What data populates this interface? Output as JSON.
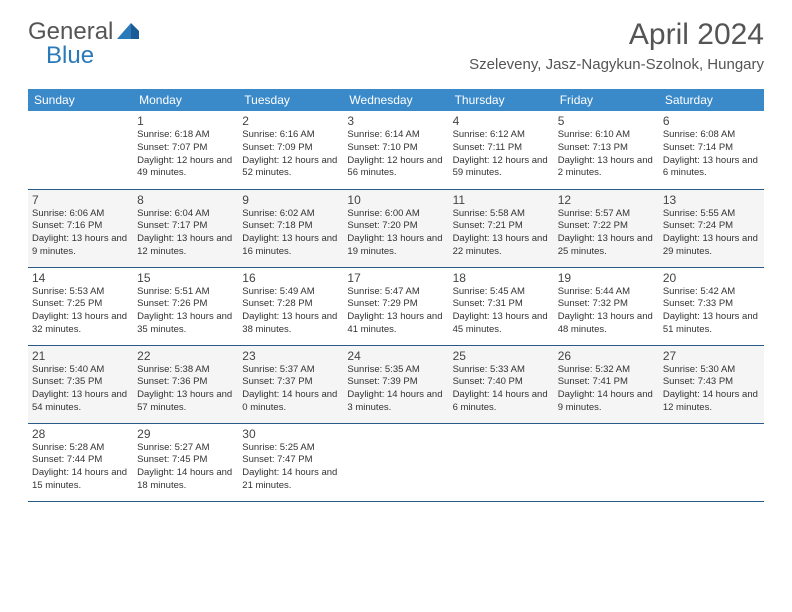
{
  "logo": {
    "text1": "General",
    "text2": "Blue"
  },
  "title": "April 2024",
  "location": "Szeleveny, Jasz-Nagykun-Szolnok, Hungary",
  "colors": {
    "header_bg": "#3a89c9",
    "header_text": "#ffffff",
    "row_border": "#2a5a8a",
    "logo_gray": "#555555",
    "logo_blue": "#2a7ab9"
  },
  "days_of_week": [
    "Sunday",
    "Monday",
    "Tuesday",
    "Wednesday",
    "Thursday",
    "Friday",
    "Saturday"
  ],
  "weeks": [
    [
      null,
      {
        "n": "1",
        "sr": "Sunrise: 6:18 AM",
        "ss": "Sunset: 7:07 PM",
        "dl": "Daylight: 12 hours and 49 minutes."
      },
      {
        "n": "2",
        "sr": "Sunrise: 6:16 AM",
        "ss": "Sunset: 7:09 PM",
        "dl": "Daylight: 12 hours and 52 minutes."
      },
      {
        "n": "3",
        "sr": "Sunrise: 6:14 AM",
        "ss": "Sunset: 7:10 PM",
        "dl": "Daylight: 12 hours and 56 minutes."
      },
      {
        "n": "4",
        "sr": "Sunrise: 6:12 AM",
        "ss": "Sunset: 7:11 PM",
        "dl": "Daylight: 12 hours and 59 minutes."
      },
      {
        "n": "5",
        "sr": "Sunrise: 6:10 AM",
        "ss": "Sunset: 7:13 PM",
        "dl": "Daylight: 13 hours and 2 minutes."
      },
      {
        "n": "6",
        "sr": "Sunrise: 6:08 AM",
        "ss": "Sunset: 7:14 PM",
        "dl": "Daylight: 13 hours and 6 minutes."
      }
    ],
    [
      {
        "n": "7",
        "sr": "Sunrise: 6:06 AM",
        "ss": "Sunset: 7:16 PM",
        "dl": "Daylight: 13 hours and 9 minutes."
      },
      {
        "n": "8",
        "sr": "Sunrise: 6:04 AM",
        "ss": "Sunset: 7:17 PM",
        "dl": "Daylight: 13 hours and 12 minutes."
      },
      {
        "n": "9",
        "sr": "Sunrise: 6:02 AM",
        "ss": "Sunset: 7:18 PM",
        "dl": "Daylight: 13 hours and 16 minutes."
      },
      {
        "n": "10",
        "sr": "Sunrise: 6:00 AM",
        "ss": "Sunset: 7:20 PM",
        "dl": "Daylight: 13 hours and 19 minutes."
      },
      {
        "n": "11",
        "sr": "Sunrise: 5:58 AM",
        "ss": "Sunset: 7:21 PM",
        "dl": "Daylight: 13 hours and 22 minutes."
      },
      {
        "n": "12",
        "sr": "Sunrise: 5:57 AM",
        "ss": "Sunset: 7:22 PM",
        "dl": "Daylight: 13 hours and 25 minutes."
      },
      {
        "n": "13",
        "sr": "Sunrise: 5:55 AM",
        "ss": "Sunset: 7:24 PM",
        "dl": "Daylight: 13 hours and 29 minutes."
      }
    ],
    [
      {
        "n": "14",
        "sr": "Sunrise: 5:53 AM",
        "ss": "Sunset: 7:25 PM",
        "dl": "Daylight: 13 hours and 32 minutes."
      },
      {
        "n": "15",
        "sr": "Sunrise: 5:51 AM",
        "ss": "Sunset: 7:26 PM",
        "dl": "Daylight: 13 hours and 35 minutes."
      },
      {
        "n": "16",
        "sr": "Sunrise: 5:49 AM",
        "ss": "Sunset: 7:28 PM",
        "dl": "Daylight: 13 hours and 38 minutes."
      },
      {
        "n": "17",
        "sr": "Sunrise: 5:47 AM",
        "ss": "Sunset: 7:29 PM",
        "dl": "Daylight: 13 hours and 41 minutes."
      },
      {
        "n": "18",
        "sr": "Sunrise: 5:45 AM",
        "ss": "Sunset: 7:31 PM",
        "dl": "Daylight: 13 hours and 45 minutes."
      },
      {
        "n": "19",
        "sr": "Sunrise: 5:44 AM",
        "ss": "Sunset: 7:32 PM",
        "dl": "Daylight: 13 hours and 48 minutes."
      },
      {
        "n": "20",
        "sr": "Sunrise: 5:42 AM",
        "ss": "Sunset: 7:33 PM",
        "dl": "Daylight: 13 hours and 51 minutes."
      }
    ],
    [
      {
        "n": "21",
        "sr": "Sunrise: 5:40 AM",
        "ss": "Sunset: 7:35 PM",
        "dl": "Daylight: 13 hours and 54 minutes."
      },
      {
        "n": "22",
        "sr": "Sunrise: 5:38 AM",
        "ss": "Sunset: 7:36 PM",
        "dl": "Daylight: 13 hours and 57 minutes."
      },
      {
        "n": "23",
        "sr": "Sunrise: 5:37 AM",
        "ss": "Sunset: 7:37 PM",
        "dl": "Daylight: 14 hours and 0 minutes."
      },
      {
        "n": "24",
        "sr": "Sunrise: 5:35 AM",
        "ss": "Sunset: 7:39 PM",
        "dl": "Daylight: 14 hours and 3 minutes."
      },
      {
        "n": "25",
        "sr": "Sunrise: 5:33 AM",
        "ss": "Sunset: 7:40 PM",
        "dl": "Daylight: 14 hours and 6 minutes."
      },
      {
        "n": "26",
        "sr": "Sunrise: 5:32 AM",
        "ss": "Sunset: 7:41 PM",
        "dl": "Daylight: 14 hours and 9 minutes."
      },
      {
        "n": "27",
        "sr": "Sunrise: 5:30 AM",
        "ss": "Sunset: 7:43 PM",
        "dl": "Daylight: 14 hours and 12 minutes."
      }
    ],
    [
      {
        "n": "28",
        "sr": "Sunrise: 5:28 AM",
        "ss": "Sunset: 7:44 PM",
        "dl": "Daylight: 14 hours and 15 minutes."
      },
      {
        "n": "29",
        "sr": "Sunrise: 5:27 AM",
        "ss": "Sunset: 7:45 PM",
        "dl": "Daylight: 14 hours and 18 minutes."
      },
      {
        "n": "30",
        "sr": "Sunrise: 5:25 AM",
        "ss": "Sunset: 7:47 PM",
        "dl": "Daylight: 14 hours and 21 minutes."
      },
      null,
      null,
      null,
      null
    ]
  ]
}
